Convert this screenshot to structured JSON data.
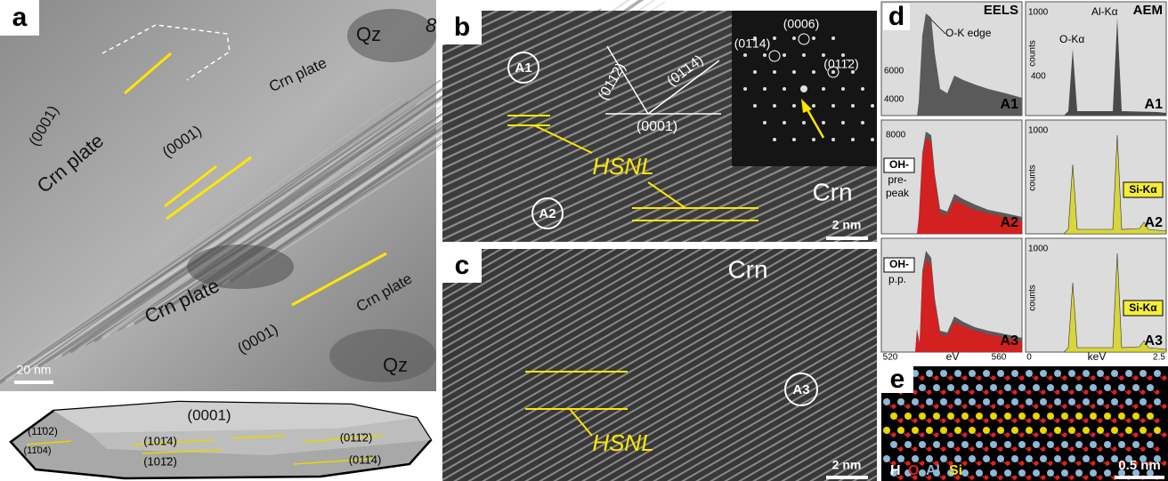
{
  "panel_a": {
    "label": "a",
    "texts": [
      "Qz",
      "8",
      "Crn plate",
      "(0001)",
      "(0001)",
      "Crn plate",
      "Crn plate",
      "Crn plate",
      "(0001)",
      "Qz"
    ],
    "scale_bar": "20 nm",
    "crystal": [
      "(0001)",
      "(11̄02)",
      "(11̄04)",
      "(101̄4)",
      "(101̄2)",
      "(011̄2)",
      "(011̄4)"
    ]
  },
  "panel_b": {
    "label": "b",
    "spots": [
      "A1",
      "A2"
    ],
    "directions": [
      "(011̄2)",
      "(01̄14)",
      "(0001)"
    ],
    "fft": [
      "(01̄14)",
      "(0006)",
      "(011̄2)"
    ],
    "hsnl": "HSNL",
    "phase": "Crn",
    "scale_bar": "2 nm"
  },
  "panel_c": {
    "label": "c",
    "phase": "Crn",
    "spot": "A3",
    "hsnl": "HSNL",
    "scale_bar": "2 nm"
  },
  "panel_d": {
    "label": "d",
    "headers": [
      "EELS",
      "AEM"
    ],
    "eels": [
      {
        "ticks": [
          "6000",
          "4000"
        ],
        "notes": [
          "O-K edge"
        ],
        "row": "A1"
      },
      {
        "ticks": [
          "8000"
        ],
        "notes": [
          "OH-",
          "pre-",
          "peak"
        ],
        "row": "A2"
      },
      {
        "ticks": [],
        "notes": [
          "OH-",
          "p.p."
        ],
        "row": "A3",
        "xaxis": [
          "520",
          "eV",
          "560"
        ]
      }
    ],
    "aem": [
      {
        "ticks": [
          "1000",
          "400"
        ],
        "ylabel": "counts",
        "notes": [
          "O-Kα",
          "Al-Kα"
        ],
        "row": "A1"
      },
      {
        "ticks": [
          "1000"
        ],
        "ylabel": "counts",
        "notes": [
          "Si-Kα"
        ],
        "row": "A2"
      },
      {
        "ticks": [
          "1000"
        ],
        "ylabel": "counts",
        "notes": [
          "Si-Kα"
        ],
        "row": "A3",
        "xaxis": [
          "0",
          "keV",
          "2.5"
        ]
      }
    ]
  },
  "panel_e": {
    "label": "e",
    "legend": [
      "H",
      "O",
      "Al",
      "Si"
    ],
    "scale_bar": "0.5 nm"
  }
}
